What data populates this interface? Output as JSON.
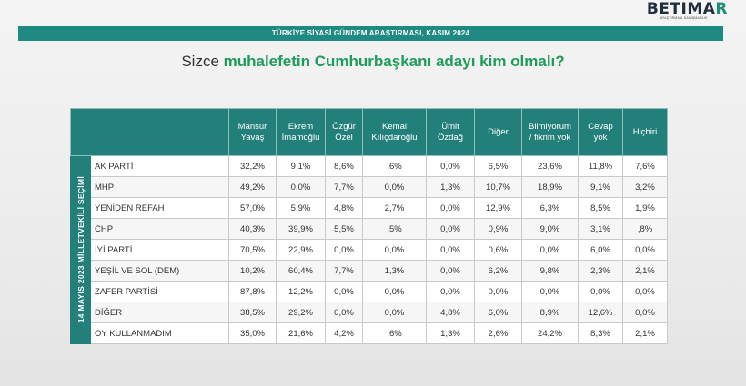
{
  "logo": {
    "main_left": "BETIMA",
    "main_accent": "R",
    "sub": "ARAŞTIRMA & DANIŞMANLIK"
  },
  "banner": "TÜRKİYE SİYASİ GÜNDEM ARAŞTIRMASI, KASIM 2024",
  "question": {
    "prefix": "Sizce ",
    "bold": "muhalefetin Cumhurbaşkanı adayı kim olmalı?"
  },
  "table": {
    "side_label": "14 MAYIS 2023 MİLLETVEKİLİ SEÇİMİ",
    "columns": [
      [
        "Mansur",
        "Yavaş"
      ],
      [
        "Ekrem",
        "İmamoğlu"
      ],
      [
        "Özgür",
        "Özel"
      ],
      [
        "Kemal",
        "Kılıçdaroğlu"
      ],
      [
        "Ümit",
        "Özdağ"
      ],
      [
        "Diğer",
        ""
      ],
      [
        "Bilmiyorum",
        "/ fikrim yok"
      ],
      [
        "Cevap",
        "yok"
      ],
      [
        "Hiçbiri",
        ""
      ]
    ],
    "rows": [
      {
        "party": "AK PARTİ",
        "values": [
          "32,2%",
          "9,1%",
          "8,6%",
          ",6%",
          "0,0%",
          "6,5%",
          "23,6%",
          "11,8%",
          "7,6%"
        ]
      },
      {
        "party": "MHP",
        "values": [
          "49,2%",
          "0,0%",
          "7,7%",
          "0,0%",
          "1,3%",
          "10,7%",
          "18,9%",
          "9,1%",
          "3,2%"
        ]
      },
      {
        "party": "YENİDEN REFAH",
        "values": [
          "57,0%",
          "5,9%",
          "4,8%",
          "2,7%",
          "0,0%",
          "12,9%",
          "6,3%",
          "8,5%",
          "1,9%"
        ]
      },
      {
        "party": "CHP",
        "values": [
          "40,3%",
          "39,9%",
          "5,5%",
          ",5%",
          "0,0%",
          "0,9%",
          "9,0%",
          "3,1%",
          ",8%"
        ]
      },
      {
        "party": "İYİ PARTİ",
        "values": [
          "70,5%",
          "22,9%",
          "0,0%",
          "0,0%",
          "0,0%",
          "0,6%",
          "0,0%",
          "6,0%",
          "0,0%"
        ]
      },
      {
        "party": "YEŞİL VE SOL (DEM)",
        "values": [
          "10,2%",
          "60,4%",
          "7,7%",
          "1,3%",
          "0,0%",
          "6,2%",
          "9,8%",
          "2,3%",
          "2,1%"
        ]
      },
      {
        "party": "ZAFER PARTİSİ",
        "values": [
          "87,8%",
          "12,2%",
          "0,0%",
          "0,0%",
          "0,0%",
          "0,0%",
          "0,0%",
          "0,0%",
          "0,0%"
        ]
      },
      {
        "party": "DİĞER",
        "values": [
          "38,5%",
          "29,2%",
          "0,0%",
          "0,0%",
          "4,8%",
          "6,0%",
          "8,9%",
          "12,6%",
          "0,0%"
        ]
      },
      {
        "party": "OY KULLANMADIM",
        "values": [
          "35,0%",
          "21,6%",
          "4,2%",
          ",6%",
          "1,3%",
          "2,6%",
          "24,2%",
          "8,3%",
          "2,1%"
        ]
      }
    ]
  },
  "colors": {
    "teal": "#237f7a",
    "banner": "#1e8a82",
    "question_green": "#1f9c5a"
  }
}
